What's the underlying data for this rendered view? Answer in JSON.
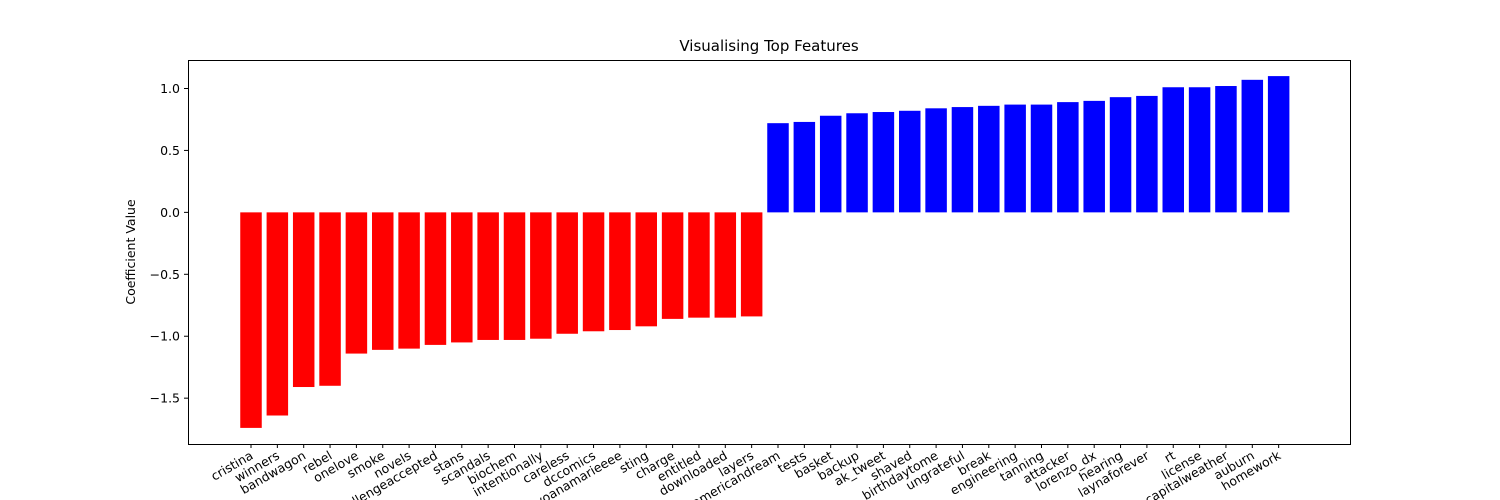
{
  "chart_data": {
    "type": "bar",
    "title": "Visualising Top Features",
    "xlabel": "",
    "ylabel": "Coefficient Value",
    "ylim": [
      -1.87,
      1.23
    ],
    "yticks": [
      -1.5,
      -1.0,
      -0.5,
      0.0,
      0.5,
      1.0
    ],
    "ytick_labels": [
      "−1.5",
      "−1.0",
      "−0.5",
      "0.0",
      "0.5",
      "1.0"
    ],
    "grid": false,
    "colors": {
      "negative": "#ff0000",
      "positive": "#0000ff"
    },
    "categories": [
      "cristina",
      "winners",
      "bandwagon",
      "rebel",
      "onelove",
      "smoke",
      "novels",
      "challengeaccepted",
      "stans",
      "scandals",
      "biochem",
      "intentionally",
      "careless",
      "dccomics",
      "ayoanamarieeee",
      "sting",
      "charge",
      "entitled",
      "downloaded",
      "layers",
      "americandream",
      "tests",
      "basket",
      "backup",
      "ak_tweet",
      "shaved",
      "birthdaytome",
      "ungrateful",
      "break",
      "engineering",
      "tanning",
      "attacker",
      "lorenzo_dx",
      "hearing",
      "laynaforever",
      "rt",
      "license",
      "capitalweather",
      "auburn",
      "homework"
    ],
    "values": [
      -1.74,
      -1.64,
      -1.41,
      -1.4,
      -1.14,
      -1.11,
      -1.1,
      -1.07,
      -1.05,
      -1.03,
      -1.03,
      -1.02,
      -0.98,
      -0.96,
      -0.95,
      -0.92,
      -0.86,
      -0.85,
      -0.85,
      -0.84,
      0.72,
      0.73,
      0.78,
      0.8,
      0.81,
      0.82,
      0.84,
      0.85,
      0.86,
      0.87,
      0.87,
      0.89,
      0.9,
      0.93,
      0.94,
      1.01,
      1.01,
      1.02,
      1.07,
      1.1
    ]
  }
}
